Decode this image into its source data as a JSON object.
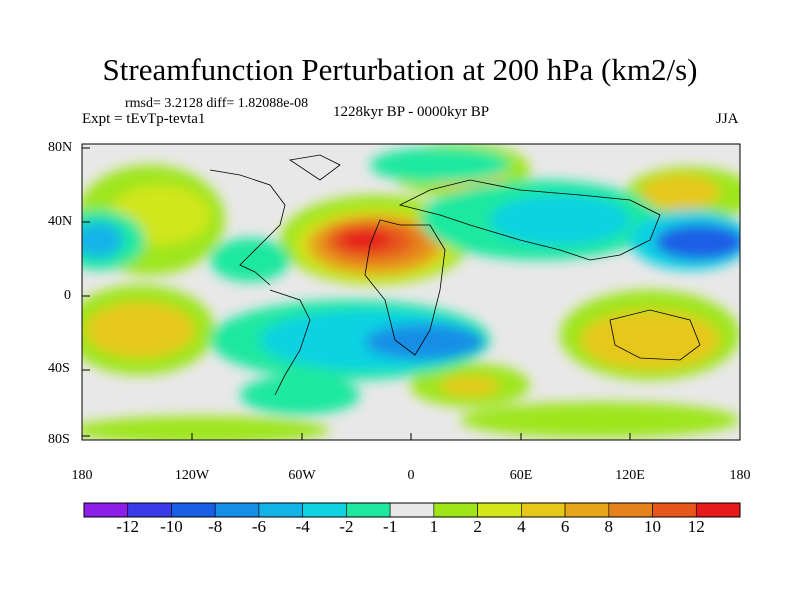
{
  "title": "Streamfunction Perturbation at 200 hPa (km2/s)",
  "stats": "rmsd= 3.2128 diff= 1.82088e-08",
  "experiment": "Expt = tEvTp-tevta1",
  "period": "1228kyr BP - 0000kyr BP",
  "season": "JJA",
  "lat_ticks": [
    "80N",
    "40N",
    "0",
    "40S",
    "80S"
  ],
  "lon_ticks": [
    "180",
    "120W",
    "60W",
    "0",
    "60E",
    "120E",
    "180"
  ],
  "colorbar": {
    "labels": [
      "-12",
      "-10",
      "-8",
      "-6",
      "-4",
      "-2",
      "-1",
      "1",
      "2",
      "4",
      "6",
      "8",
      "10",
      "12"
    ],
    "colors": [
      "#8b1ee8",
      "#3a3ae8",
      "#1a5ee6",
      "#148ee6",
      "#12b4e8",
      "#10d2e2",
      "#1ee8a0",
      "#e8e8e8",
      "#9ee61a",
      "#d2e61a",
      "#e6c81a",
      "#e6a51a",
      "#e6821a",
      "#e6551a",
      "#e61a1a"
    ]
  }
}
